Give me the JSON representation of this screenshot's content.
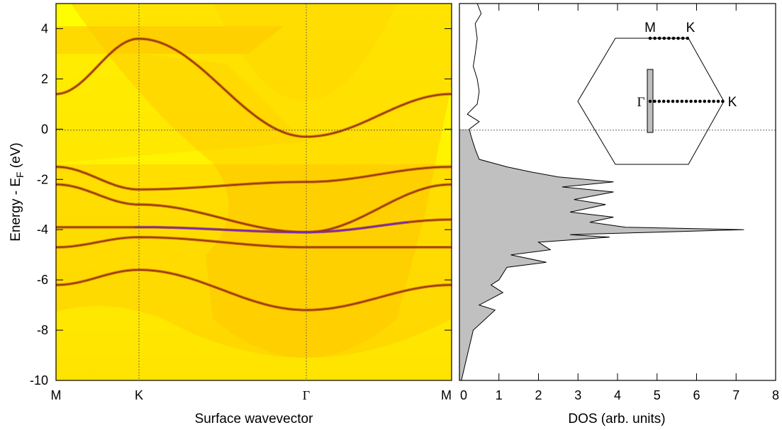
{
  "left_panel": {
    "y_label": "Energy - E",
    "y_label_sub": "F",
    "y_label_unit": " (eV)",
    "x_label": "Surface wavevector",
    "y_ticks": [
      "4",
      "2",
      "0",
      "-2",
      "-4",
      "-6",
      "-8",
      "-10"
    ],
    "x_ticks": [
      "M",
      "K",
      "Γ",
      "M"
    ]
  },
  "right_panel": {
    "x_label": "DOS (arb. units)",
    "x_ticks": [
      "0",
      "1",
      "2",
      "3",
      "4",
      "5",
      "6",
      "7",
      "8"
    ],
    "inset_labels": {
      "M": "M",
      "K_top": "K",
      "Gamma": "Γ",
      "K_right": "K"
    }
  },
  "colors": {
    "background_yellow": "#ffff00",
    "band_brown": "#9c2f0c",
    "band_purple": "#7a2ab5",
    "dos_fill": "#c0c0c0"
  },
  "chart_data": [
    {
      "type": "heatmap",
      "title": "",
      "xlabel": "Surface wavevector",
      "ylabel": "Energy - E_F (eV)",
      "x_categories": [
        "M",
        "K",
        "Γ",
        "M"
      ],
      "ylim": [
        -10,
        5
      ],
      "fermi_level_line": 0,
      "bands": [
        {
          "name": "",
          "x": [
            0,
            1,
            2,
            3
          ],
          "y": [
            1.4,
            3.6,
            -0.3,
            1.4
          ]
        },
        {
          "name": "",
          "x": [
            0,
            1,
            2,
            3
          ],
          "y": [
            -1.5,
            -2.4,
            -2.1,
            -1.5
          ]
        },
        {
          "name": "",
          "x": [
            0,
            1,
            2,
            3
          ],
          "y": [
            -2.2,
            -3.0,
            -4.1,
            -2.2
          ]
        },
        {
          "name": "",
          "x": [
            0,
            1,
            2,
            3
          ],
          "y": [
            -3.9,
            -3.9,
            -4.1,
            -3.6
          ]
        },
        {
          "name": "",
          "x": [
            0,
            1,
            2,
            3
          ],
          "y": [
            -4.7,
            -4.3,
            -4.7,
            -4.7
          ]
        },
        {
          "name": "",
          "x": [
            0,
            1,
            2,
            3
          ],
          "y": [
            -6.2,
            -5.6,
            -7.2,
            -6.2
          ]
        }
      ]
    },
    {
      "type": "area",
      "title": "",
      "xlabel": "DOS (arb. units)",
      "ylabel": "",
      "xlim": [
        0,
        8
      ],
      "ylim": [
        -10,
        5
      ],
      "filled_below_fermi": true,
      "series": [
        {
          "name": "",
          "energy": [
            -10,
            -9,
            -8,
            -7.2,
            -7,
            -6.5,
            -6.2,
            -6,
            -5.5,
            -5.3,
            -5,
            -4.8,
            -4.5,
            -4.3,
            -4.2,
            -4.1,
            -4.0,
            -3.9,
            -3.7,
            -3.5,
            -3.3,
            -3,
            -2.8,
            -2.5,
            -2.3,
            -2.1,
            -1.9,
            -1.7,
            -1.5,
            -1.2,
            -0.8,
            -0.3,
            0,
            0.3,
            0.6,
            1.0,
            1.5,
            2.0,
            2.5,
            3.0,
            3.6,
            4.2,
            4.6,
            5.0
          ],
          "dos": [
            0.05,
            0.2,
            0.35,
            0.9,
            0.5,
            1.1,
            0.8,
            1.0,
            1.2,
            2.2,
            1.3,
            2.3,
            2.0,
            3.8,
            2.8,
            5.0,
            7.2,
            4.2,
            3.3,
            3.9,
            2.8,
            3.7,
            2.9,
            3.9,
            2.6,
            3.9,
            2.5,
            1.8,
            1.2,
            0.5,
            0.4,
            0.3,
            0.25,
            0.5,
            0.2,
            0.45,
            0.5,
            0.45,
            0.35,
            0.4,
            0.45,
            0.4,
            0.55,
            0.45
          ]
        }
      ]
    }
  ]
}
